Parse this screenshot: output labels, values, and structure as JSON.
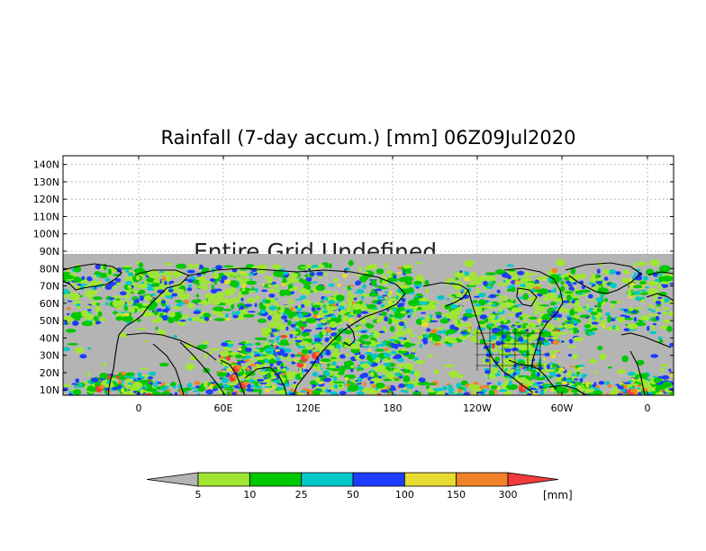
{
  "title": "Rainfall (7-day accum.) [mm] 06Z09Jul2020",
  "overlay_text": "Entire Grid Undefined",
  "map": {
    "lat_labels": [
      "140N",
      "130N",
      "120N",
      "110N",
      "100N",
      "90N",
      "80N",
      "70N",
      "60N",
      "50N",
      "40N",
      "30N",
      "20N",
      "10N"
    ],
    "lon_labels": [
      "0",
      "60E",
      "120E",
      "180",
      "120W",
      "60W",
      "0"
    ],
    "ocean_color": "#b4b4b4",
    "land_color": "#b4b4b4",
    "coast_color": "#000000"
  },
  "legend": {
    "unit": "[mm]",
    "labels": [
      "5",
      "10",
      "25",
      "50",
      "100",
      "150",
      "300"
    ],
    "colors": [
      "#b4b4b4",
      "#a0e632",
      "#00c800",
      "#00c8c8",
      "#1e3cff",
      "#e6dc32",
      "#f08228",
      "#f03c3c"
    ]
  }
}
